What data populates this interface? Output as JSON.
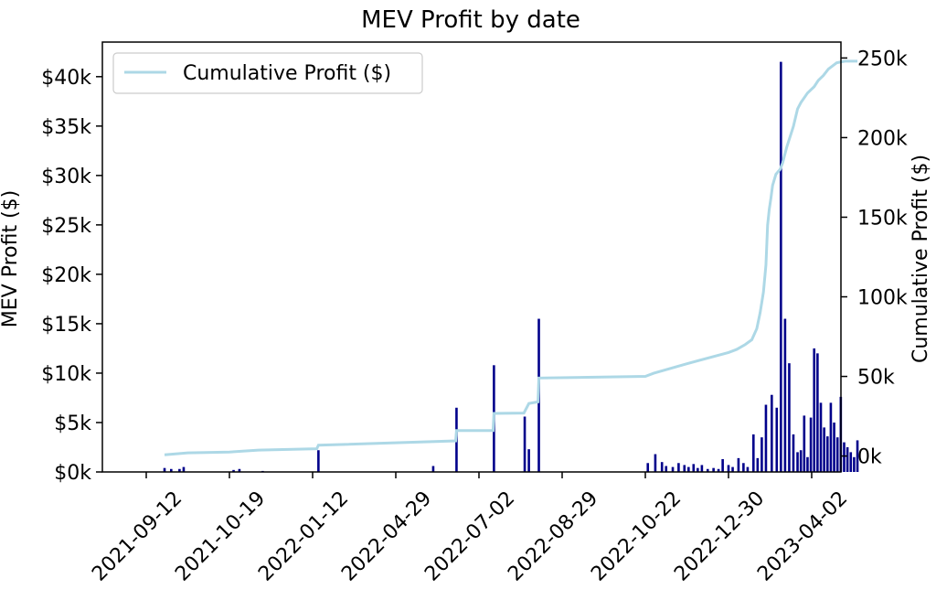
{
  "chart_data": {
    "type": "bar",
    "title": "MEV Profit by date",
    "ylabel": "MEV Profit ($)",
    "y2label": "Cumulative Profit ($)",
    "xlabel": "",
    "ylim": [
      0,
      43500
    ],
    "y2lim": [
      -10000,
      260000
    ],
    "y_ticks": [
      {
        "value": 0,
        "label": "$0k"
      },
      {
        "value": 5000,
        "label": "$5k"
      },
      {
        "value": 10000,
        "label": "$10k"
      },
      {
        "value": 15000,
        "label": "$15k"
      },
      {
        "value": 20000,
        "label": "$20k"
      },
      {
        "value": 25000,
        "label": "$25k"
      },
      {
        "value": 30000,
        "label": "$30k"
      },
      {
        "value": 35000,
        "label": "$35k"
      },
      {
        "value": 40000,
        "label": "$40k"
      }
    ],
    "y2_ticks": [
      {
        "value": 0,
        "label": "0k"
      },
      {
        "value": 50000,
        "label": "50k"
      },
      {
        "value": 100000,
        "label": "100k"
      },
      {
        "value": 150000,
        "label": "150k"
      },
      {
        "value": 200000,
        "label": "200k"
      },
      {
        "value": 250000,
        "label": "250k"
      }
    ],
    "x_tick_labels": [
      "2021-09-12",
      "2021-10-19",
      "2022-01-12",
      "2022-04-29",
      "2022-07-02",
      "2022-08-29",
      "2022-10-22",
      "2022-12-30",
      "2023-04-02"
    ],
    "grid": false,
    "legend_position": "upper-left",
    "series": [
      {
        "name": "MEV Profit",
        "kind": "bar",
        "color": "#00008b",
        "x": [
          0.22,
          0.3,
          0.4,
          0.45,
          1.05,
          1.12,
          1.4,
          2.07,
          3.45,
          3.73,
          4.18,
          4.55,
          4.6,
          4.72,
          6.03,
          6.12,
          6.2,
          6.25,
          6.33,
          6.4,
          6.47,
          6.52,
          6.58,
          6.63,
          6.68,
          6.75,
          6.82,
          6.88,
          6.93,
          7.0,
          7.05,
          7.12,
          7.18,
          7.23,
          7.3,
          7.35,
          7.4,
          7.45,
          7.52,
          7.58,
          7.63,
          7.68,
          7.73,
          7.78,
          7.83,
          7.87,
          7.91,
          7.95,
          7.99,
          8.03,
          8.07,
          8.11,
          8.15,
          8.19,
          8.23,
          8.27,
          8.31,
          8.35,
          8.39,
          8.43,
          8.47,
          8.51,
          8.55
        ],
        "values": [
          400,
          300,
          300,
          500,
          200,
          300,
          100,
          2200,
          600,
          6500,
          10800,
          5600,
          2300,
          15500,
          900,
          1800,
          1000,
          600,
          500,
          900,
          700,
          500,
          800,
          400,
          700,
          300,
          400,
          300,
          1300,
          700,
          500,
          1400,
          900,
          500,
          3800,
          1400,
          3500,
          6800,
          7800,
          6500,
          41500,
          15500,
          11000,
          3800,
          2000,
          2200,
          5700,
          1500,
          5500,
          12500,
          12000,
          7000,
          4500,
          3600,
          7000,
          5000,
          3500,
          7600,
          3000,
          2500,
          2000,
          1500,
          3200
        ]
      },
      {
        "name": "Cumulative Profit ($)",
        "kind": "line",
        "color": "#add8e6",
        "x": [
          0.22,
          0.5,
          1.0,
          1.35,
          2.05,
          2.07,
          3.72,
          3.73,
          4.17,
          4.18,
          4.54,
          4.6,
          4.71,
          4.72,
          6.0,
          6.1,
          6.5,
          7.0,
          7.1,
          7.2,
          7.28,
          7.34,
          7.38,
          7.42,
          7.45,
          7.47,
          7.49,
          7.51,
          7.53,
          7.57,
          7.62,
          7.65,
          7.7,
          7.78,
          7.83,
          7.87,
          7.95,
          8.03,
          8.08,
          8.14,
          8.2,
          8.3,
          8.4,
          8.5,
          8.55
        ],
        "values": [
          800,
          2000,
          2500,
          3700,
          4600,
          6800,
          9500,
          16000,
          16000,
          26800,
          27000,
          33000,
          34000,
          49000,
          50000,
          52000,
          58000,
          65000,
          67000,
          70000,
          73000,
          80000,
          90000,
          103000,
          120000,
          145000,
          155000,
          162000,
          170000,
          177000,
          180000,
          184000,
          194000,
          207000,
          218000,
          222000,
          228000,
          232000,
          236000,
          239000,
          243000,
          247000,
          248000,
          248000,
          248000
        ]
      }
    ]
  }
}
